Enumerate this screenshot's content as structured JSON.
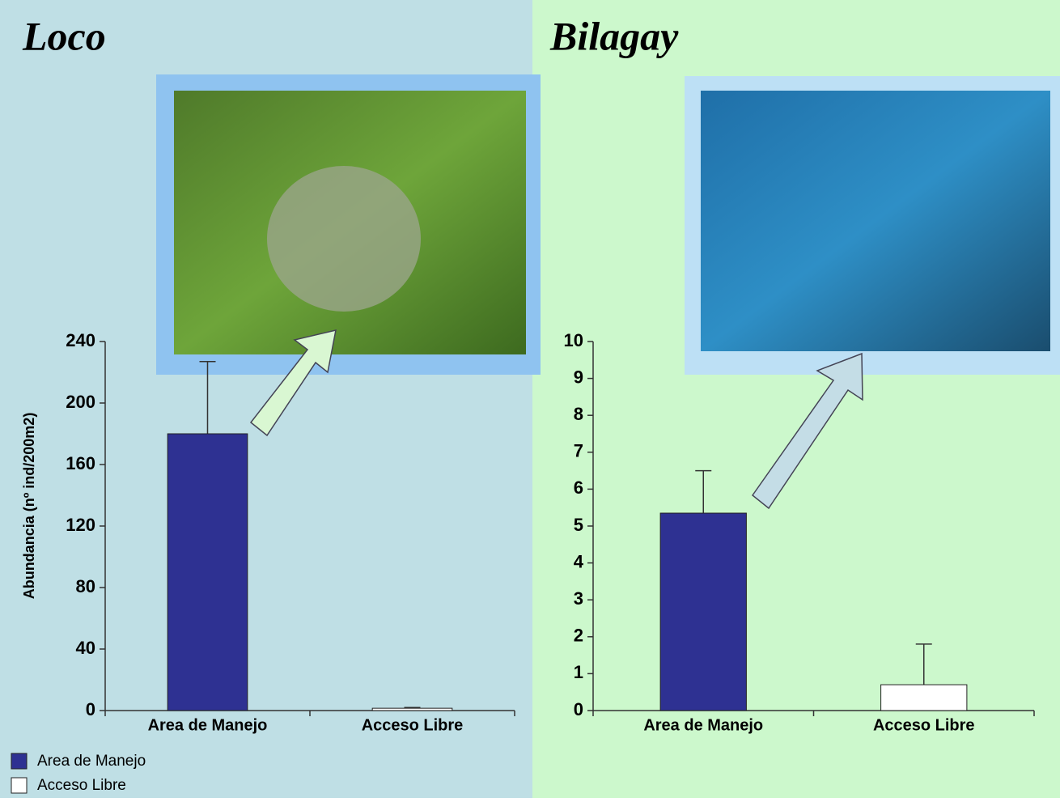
{
  "chart_data": [
    {
      "type": "bar",
      "title": "Loco",
      "y_label": "Abundancia (nº ind/200m2)",
      "categories": [
        "Area de Manejo",
        "Acceso Libre"
      ],
      "values": [
        180,
        1.5
      ],
      "errors": [
        47,
        0.5
      ],
      "colors": [
        "#2e3192",
        "#ffffff"
      ],
      "ylim": [
        0,
        240
      ],
      "yticks": [
        0,
        40,
        80,
        120,
        160,
        200,
        240
      ],
      "legend": "bottom-left"
    },
    {
      "type": "bar",
      "title": "Bilagay",
      "categories": [
        "Area de Manejo",
        "Acceso Libre"
      ],
      "values": [
        5.35,
        0.7
      ],
      "errors": [
        1.15,
        1.1
      ],
      "colors": [
        "#2e3192",
        "#ffffff"
      ],
      "ylim": [
        0,
        10
      ],
      "yticks": [
        0,
        1,
        2,
        3,
        4,
        5,
        6,
        7,
        8,
        9,
        10
      ]
    }
  ]
}
